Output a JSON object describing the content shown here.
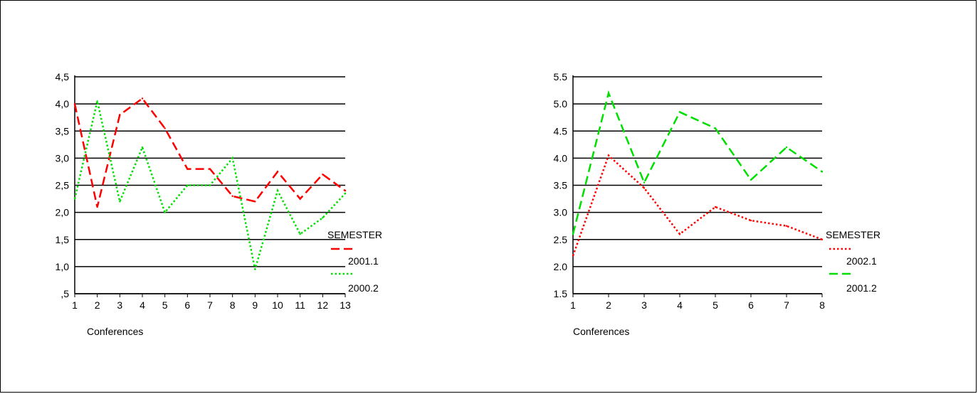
{
  "chart_data": [
    {
      "type": "line",
      "xlabel": "Conferences",
      "ylabel": "",
      "x": [
        1,
        2,
        3,
        4,
        5,
        6,
        7,
        8,
        9,
        10,
        11,
        12,
        13
      ],
      "y_ticks": [
        ",5",
        "1,0",
        "1,5",
        "2,0",
        "2,5",
        "3,0",
        "3,5",
        "4,0",
        "4,5"
      ],
      "ylim": [
        0.5,
        4.5
      ],
      "grid": true,
      "legend": {
        "title": "SEMESTER",
        "position": "right"
      },
      "series": [
        {
          "name": "2001.1",
          "style": "dashed",
          "color": "#ff0000",
          "values": [
            4.0,
            2.1,
            3.8,
            4.1,
            3.55,
            2.8,
            2.8,
            2.3,
            2.2,
            2.75,
            2.25,
            2.7,
            2.4
          ]
        },
        {
          "name": "2000.2",
          "style": "dotted",
          "color": "#00e000",
          "values": [
            2.25,
            4.05,
            2.2,
            3.2,
            2.0,
            2.5,
            2.5,
            3.0,
            0.95,
            2.4,
            1.6,
            1.9,
            2.35
          ]
        }
      ]
    },
    {
      "type": "line",
      "xlabel": "Conferences",
      "ylabel": "",
      "x": [
        1,
        2,
        3,
        4,
        5,
        6,
        7,
        8
      ],
      "y_ticks": [
        "1.5",
        "2.0",
        "2.5",
        "3.0",
        "3.5",
        "4.0",
        "4.5",
        "5.0",
        "5.5"
      ],
      "ylim": [
        1.5,
        5.5
      ],
      "grid": true,
      "legend": {
        "title": "SEMESTER",
        "position": "right"
      },
      "series": [
        {
          "name": "2002.1",
          "style": "dotted",
          "color": "#ff0000",
          "values": [
            2.2,
            4.05,
            3.45,
            2.6,
            3.1,
            2.85,
            2.75,
            2.5
          ]
        },
        {
          "name": "2001.2",
          "style": "dashed",
          "color": "#00e000",
          "values": [
            2.6,
            5.2,
            3.55,
            4.85,
            4.55,
            3.6,
            4.2,
            3.75
          ]
        }
      ]
    }
  ]
}
